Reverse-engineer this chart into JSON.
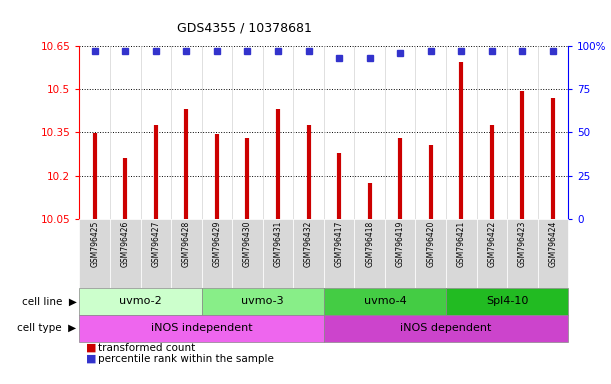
{
  "title": "GDS4355 / 10378681",
  "samples": [
    "GSM796425",
    "GSM796426",
    "GSM796427",
    "GSM796428",
    "GSM796429",
    "GSM796430",
    "GSM796431",
    "GSM796432",
    "GSM796417",
    "GSM796418",
    "GSM796419",
    "GSM796420",
    "GSM796421",
    "GSM796422",
    "GSM796423",
    "GSM796424"
  ],
  "transformed_count": [
    10.348,
    10.26,
    10.375,
    10.43,
    10.345,
    10.33,
    10.43,
    10.375,
    10.28,
    10.175,
    10.33,
    10.305,
    10.595,
    10.375,
    10.495,
    10.47
  ],
  "percentile_rank": [
    97,
    97,
    97,
    97,
    97,
    97,
    97,
    97,
    93,
    93,
    96,
    97,
    97,
    97,
    97,
    97
  ],
  "ylim_left": [
    10.05,
    10.65
  ],
  "ylim_right": [
    0,
    100
  ],
  "yticks_left": [
    10.05,
    10.2,
    10.35,
    10.5,
    10.65
  ],
  "yticks_right": [
    0,
    25,
    50,
    75,
    100
  ],
  "bar_color": "#cc0000",
  "dot_color": "#3333cc",
  "cell_line_groups": [
    {
      "label": "uvmo-2",
      "start": 0,
      "end": 4,
      "color": "#ccffcc"
    },
    {
      "label": "uvmo-3",
      "start": 4,
      "end": 8,
      "color": "#88ee88"
    },
    {
      "label": "uvmo-4",
      "start": 8,
      "end": 12,
      "color": "#44cc44"
    },
    {
      "label": "Spl4-10",
      "start": 12,
      "end": 16,
      "color": "#22bb22"
    }
  ],
  "cell_type_groups": [
    {
      "label": "iNOS independent",
      "start": 0,
      "end": 8,
      "color": "#ee66ee"
    },
    {
      "label": "iNOS dependent",
      "start": 8,
      "end": 16,
      "color": "#cc44cc"
    }
  ],
  "legend_items": [
    {
      "label": "transformed count",
      "color": "#cc0000"
    },
    {
      "label": "percentile rank within the sample",
      "color": "#3333cc"
    }
  ]
}
